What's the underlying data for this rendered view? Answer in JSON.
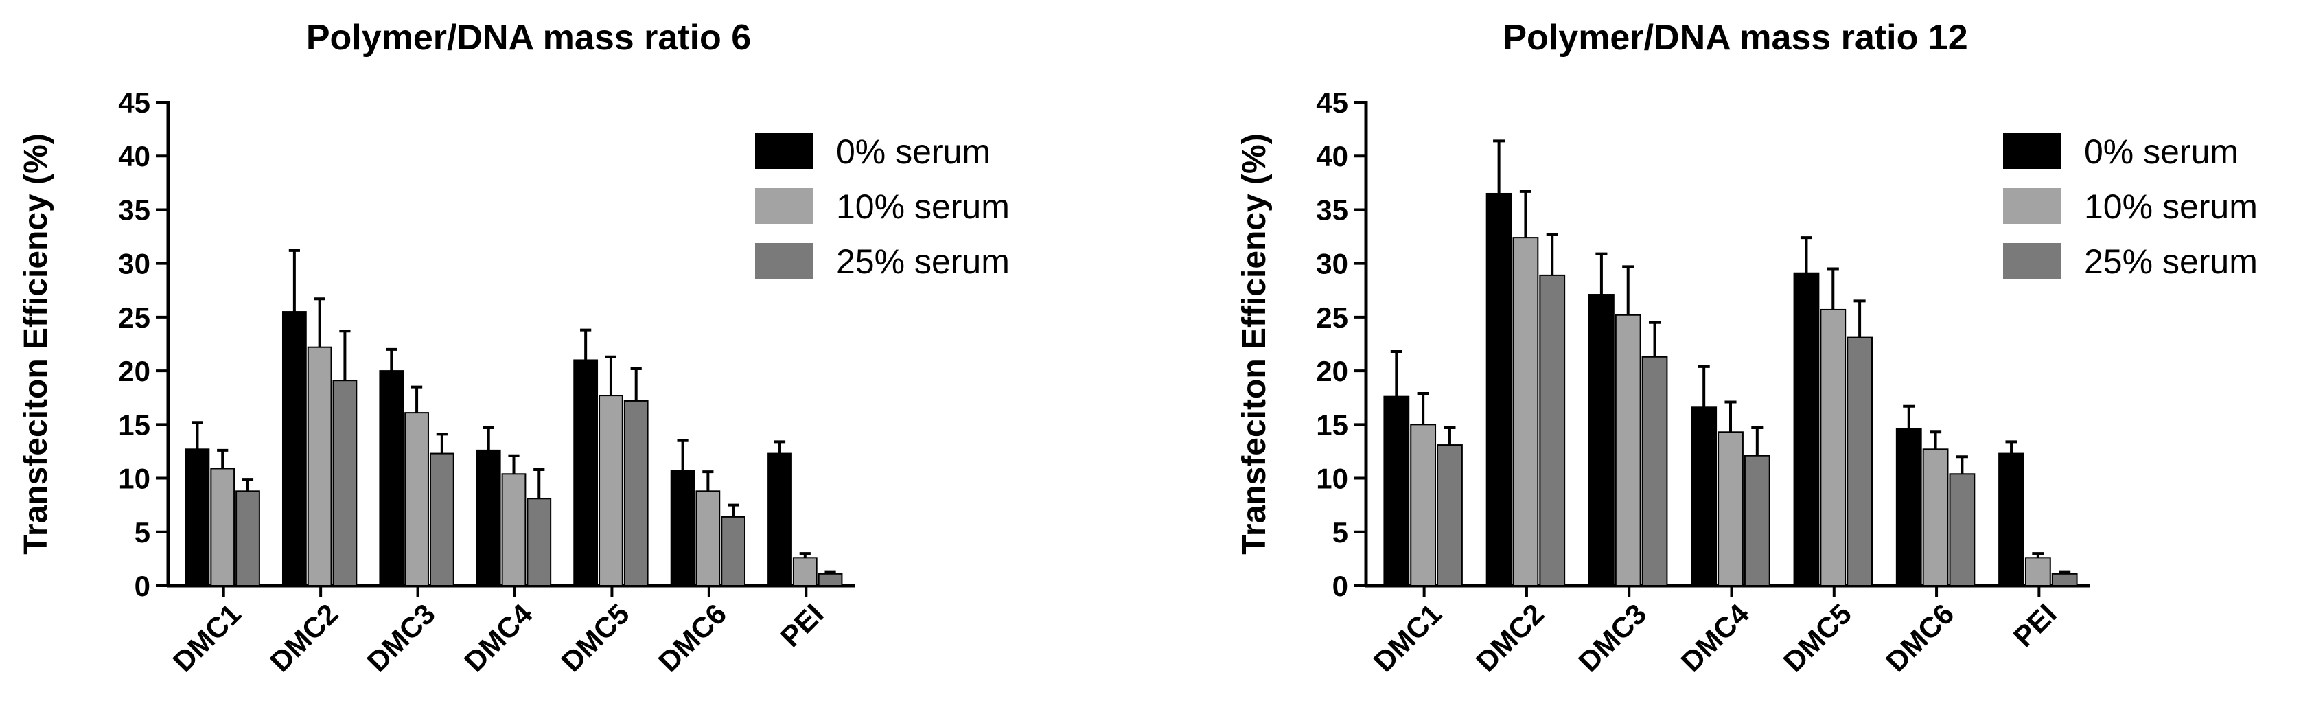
{
  "colors": {
    "0% serum": "#000000",
    "10% serum": "#a3a3a3",
    "25% serum": "#7a7a7a"
  },
  "chart_data": [
    {
      "type": "bar",
      "title": "Polymer/DNA mass ratio 6",
      "xlabel": "",
      "ylabel": "Transfeciton Efficiency (%)",
      "ylim": [
        0,
        45
      ],
      "yticks": [
        0,
        5,
        10,
        15,
        20,
        25,
        30,
        35,
        40,
        45
      ],
      "grid": false,
      "legend": "top-right",
      "categories": [
        "DMC1",
        "DMC2",
        "DMC3",
        "DMC4",
        "DMC5",
        "DMC6",
        "PEI"
      ],
      "series": [
        {
          "name": "0% serum",
          "values": [
            12.7,
            25.5,
            20.0,
            12.6,
            21.0,
            10.7,
            12.3
          ],
          "errors": [
            2.5,
            5.7,
            2.0,
            2.1,
            2.8,
            2.8,
            1.1
          ]
        },
        {
          "name": "10% serum",
          "values": [
            10.9,
            22.2,
            16.1,
            10.4,
            17.7,
            8.8,
            2.6
          ],
          "errors": [
            1.7,
            4.5,
            2.4,
            1.7,
            3.6,
            1.8,
            0.4
          ]
        },
        {
          "name": "25% serum",
          "values": [
            8.8,
            19.1,
            12.3,
            8.1,
            17.2,
            6.4,
            1.1
          ],
          "errors": [
            1.1,
            4.6,
            1.8,
            2.7,
            3.0,
            1.1,
            0.2
          ]
        }
      ]
    },
    {
      "type": "bar",
      "title": "Polymer/DNA mass ratio 12",
      "xlabel": "",
      "ylabel": "Transfeciton Efficiency (%)",
      "ylim": [
        0,
        45
      ],
      "yticks": [
        0,
        5,
        10,
        15,
        20,
        25,
        30,
        35,
        40,
        45
      ],
      "grid": false,
      "legend": "top-right",
      "categories": [
        "DMC1",
        "DMC2",
        "DMC3",
        "DMC4",
        "DMC5",
        "DMC6",
        "PEI"
      ],
      "series": [
        {
          "name": "0% serum",
          "values": [
            17.6,
            36.5,
            27.1,
            16.6,
            29.1,
            14.6,
            12.3
          ],
          "errors": [
            4.2,
            4.9,
            3.8,
            3.8,
            3.3,
            2.1,
            1.1
          ]
        },
        {
          "name": "10% serum",
          "values": [
            15.0,
            32.4,
            25.2,
            14.3,
            25.7,
            12.7,
            2.6
          ],
          "errors": [
            2.9,
            4.3,
            4.5,
            2.8,
            3.8,
            1.6,
            0.4
          ]
        },
        {
          "name": "25% serum",
          "values": [
            13.1,
            28.9,
            21.3,
            12.1,
            23.1,
            10.4,
            1.1
          ],
          "errors": [
            1.6,
            3.8,
            3.2,
            2.6,
            3.4,
            1.6,
            0.2
          ]
        }
      ]
    }
  ]
}
